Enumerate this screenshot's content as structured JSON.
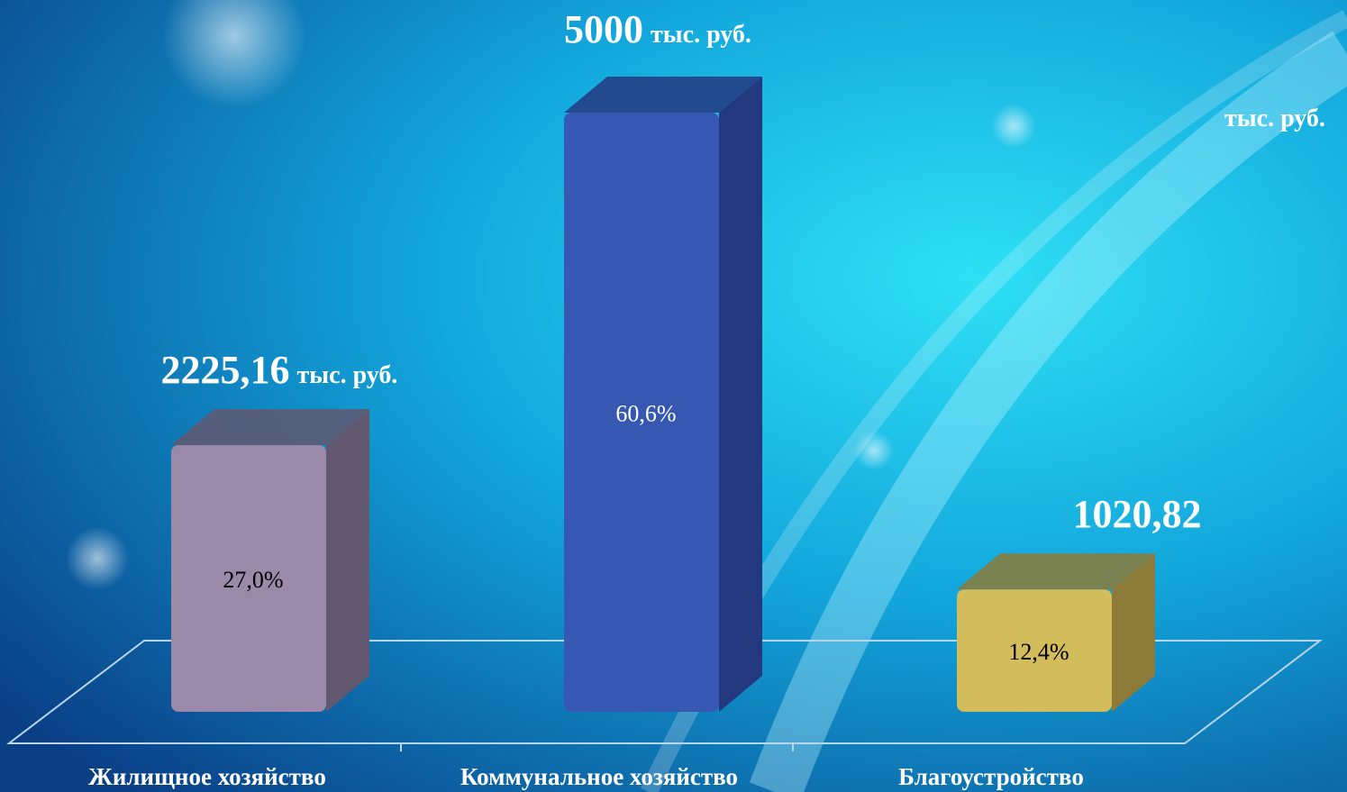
{
  "chart_data": {
    "type": "bar3d",
    "categories": [
      "Жилищное хозяйство",
      "Коммунальное хозяйство",
      "Благоустройство"
    ],
    "values": [
      2225.16,
      5000,
      1020.82
    ],
    "value_labels": [
      "2225,16",
      "5000",
      "1020,82"
    ],
    "unit_labels": [
      "тыс. руб.",
      "тыс. руб.",
      "тыс. руб."
    ],
    "percent_values": [
      27.0,
      60.6,
      12.4
    ],
    "percent_labels": [
      "27,0%",
      "60,6%",
      "12,4%"
    ],
    "colors": [
      "#9a89a8",
      "#3658b2",
      "#d3bc5c"
    ],
    "side_colors": [
      "#625870",
      "#243880",
      "#8c7a38"
    ],
    "percent_colors": [
      "#000000",
      "#ffffff",
      "#000000"
    ]
  }
}
